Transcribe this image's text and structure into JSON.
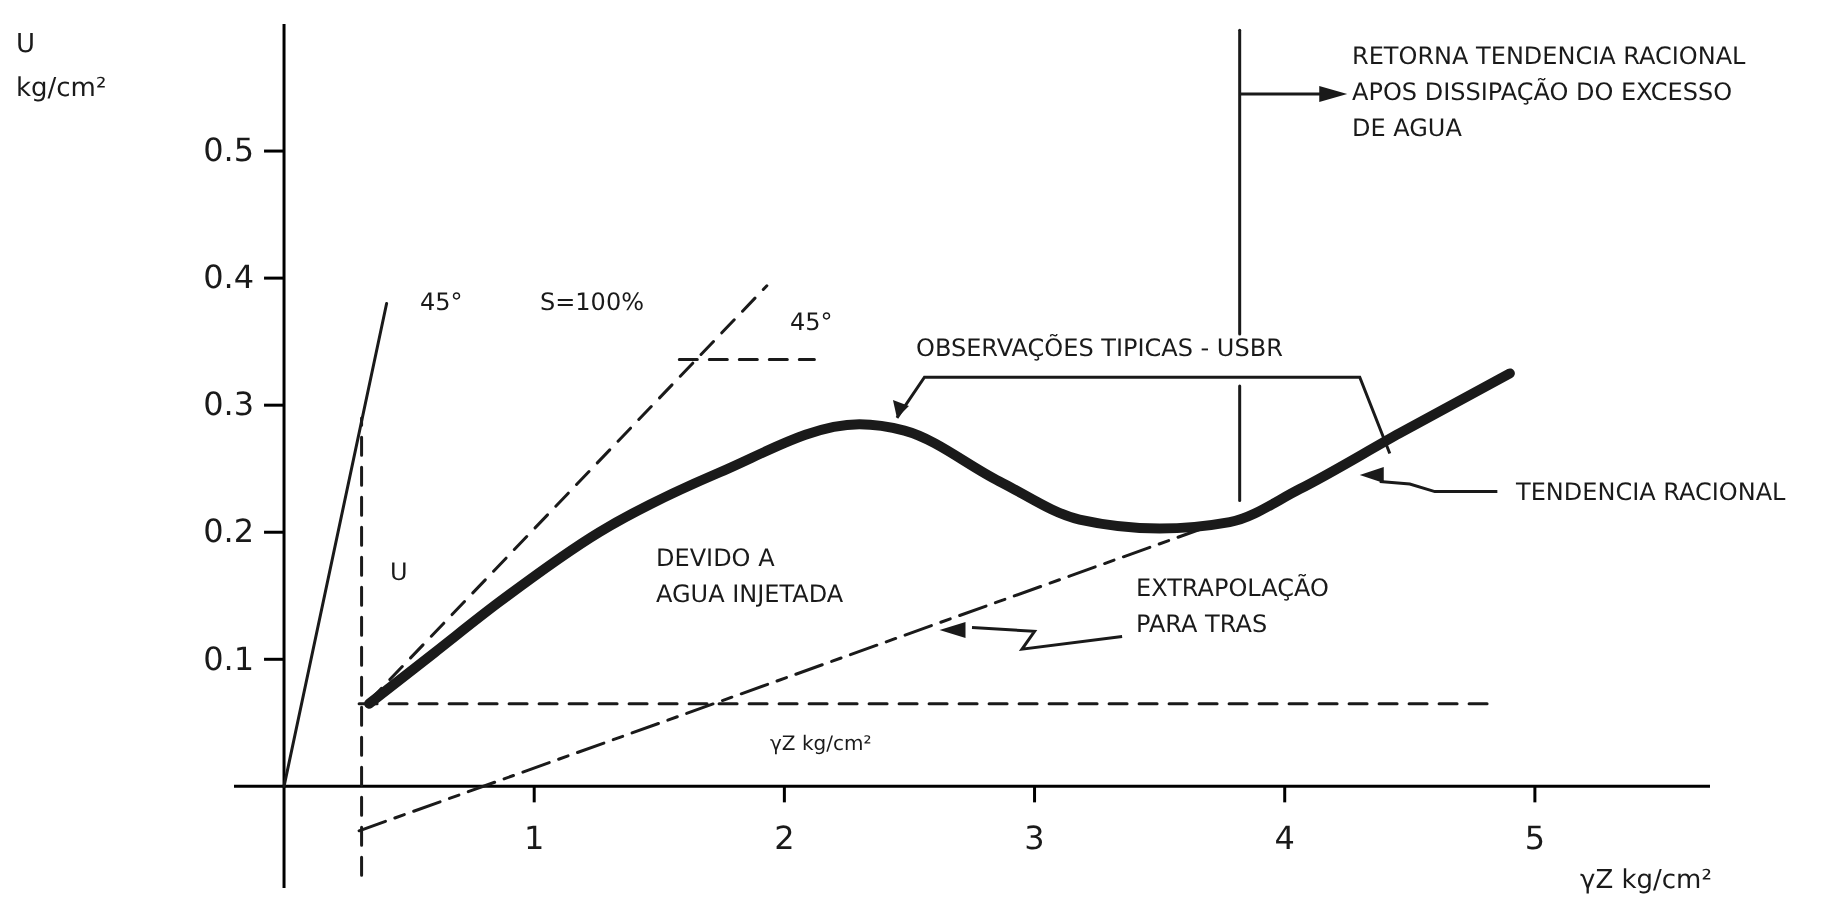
{
  "chart_data": {
    "type": "line",
    "xlabel": "γZ kg/cm²",
    "ylabel": "U\nkg/cm²",
    "xlim": [
      -0.2,
      5.7
    ],
    "ylim": [
      -0.08,
      0.6
    ],
    "xticks": [
      1,
      2,
      3,
      4,
      5
    ],
    "yticks": [
      0.1,
      0.2,
      0.3,
      0.4,
      0.5
    ],
    "series": [
      {
        "color": "#1a1a1a",
        "line_style": "solid",
        "x": [
          0.34,
          0.6,
          0.86,
          1.26,
          1.74,
          2.3,
          2.48,
          2.86,
          3.18,
          3.5,
          3.78,
          4.06,
          4.46,
          4.9
        ],
        "values": [
          0.065,
          0.105,
          0.145,
          0.2,
          0.247,
          0.285,
          0.28,
          0.24,
          0.21,
          0.203,
          0.208,
          0.234,
          0.278,
          0.325
        ]
      },
      {
        "color": "#1a1a1a",
        "line_style": "solid",
        "x": [
          0,
          0.41
        ],
        "values": [
          0,
          0.38
        ]
      },
      {
        "color": "#1a1a1a",
        "line_style": "dashed",
        "x": [
          0.34,
          1.93
        ],
        "values": [
          0.067,
          0.394
        ]
      },
      {
        "color": "#1a1a1a",
        "line_style": "dashed",
        "x": [
          1.58,
          2.12
        ],
        "values": [
          0.336,
          0.336
        ]
      },
      {
        "color": "#1a1a1a",
        "line_style": "dashed",
        "x": [
          0.3,
          4.82
        ],
        "values": [
          0.065,
          0.065
        ]
      },
      {
        "color": "#1a1a1a",
        "line_style": "dashed",
        "x": [
          0.31,
          0.31
        ],
        "values": [
          -0.07,
          0.29
        ]
      },
      {
        "color": "#1a1a1a",
        "line_style": "dashdot",
        "x": [
          0.3,
          3.7
        ],
        "values": [
          -0.035,
          0.205
        ]
      },
      {
        "color": "#1a1a1a",
        "line_style": "solid",
        "x": [
          3.82,
          3.82
        ],
        "values": [
          0.225,
          0.315
        ]
      },
      {
        "color": "#1a1a1a",
        "line_style": "solid",
        "x": [
          3.82,
          3.82
        ],
        "values": [
          0.356,
          0.595
        ]
      }
    ],
    "annotations": [
      "45°",
      "S=100%",
      "45°",
      "U",
      "DEVIDO A\nAGUA INJETADA",
      "OBSERVAÇÕES TIPICAS - USBR",
      "RETORNA TENDENCIA RACIONAL\nAPOS DISSIPAÇÃO DO EXCESSO\nDE AGUA",
      "TENDENCIA RACIONAL",
      "EXTRAPOLAÇÃO\nPARA TRAS",
      "γZ kg/cm²"
    ]
  }
}
